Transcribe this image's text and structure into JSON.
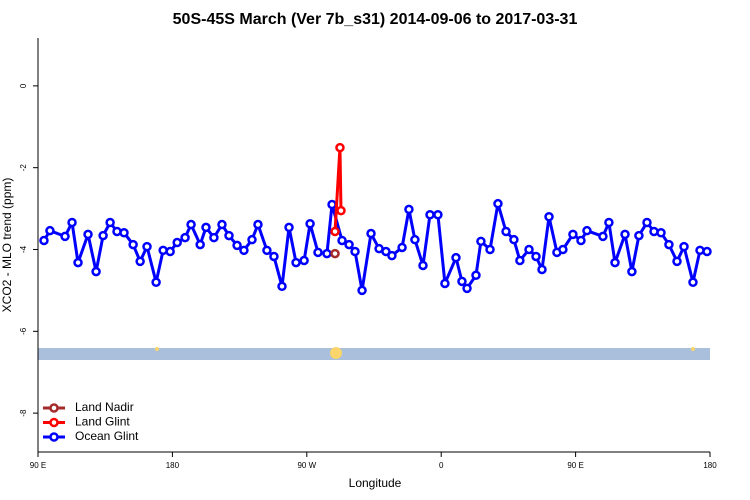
{
  "chart_data": {
    "type": "line",
    "title": "50S-45S March (Ver 7b_s31)   2014-09-06 to 2017-03-31",
    "x_label": "Longitude",
    "y_label": "XCO2 - MLO trend (ppm)",
    "xlim": [
      90,
      540
    ],
    "ylim": [
      -8.95,
      1.17
    ],
    "xticks": [
      {
        "value": 90,
        "label": "90 E"
      },
      180,
      {
        "value": 270,
        "label": "90 W"
      },
      {
        "value": 360,
        "label": "0"
      },
      {
        "value": 450,
        "label": "90 E"
      },
      {
        "value": 540,
        "label": "180"
      }
    ],
    "yticks": [
      0,
      -2,
      -4,
      -6,
      -8
    ],
    "legend": "bottom-left",
    "series": [
      {
        "name": "Land Nadir",
        "color": "#a52a2a",
        "x": [
          288.9
        ],
        "values": [
          -4.1
        ]
      },
      {
        "name": "Land Glint",
        "color": "#ff0000",
        "x": [
          288.9,
          292.2,
          292.9
        ],
        "values": [
          -3.56,
          -1.51,
          -3.05
        ]
      },
      {
        "name": "Ocean Glint",
        "color": "#0000ff",
        "x": [
          94.0,
          98.0,
          108.1,
          112.8,
          116.8,
          123.5,
          128.9,
          133.6,
          138.3,
          142.9,
          147.6,
          153.7,
          158.4,
          163.0,
          169.1,
          173.8,
          178.5,
          183.2,
          188.5,
          192.5,
          198.6,
          202.5,
          207.8,
          213.2,
          217.9,
          223.3,
          227.9,
          233.3,
          237.3,
          243.3,
          248.0,
          253.4,
          258.1,
          262.8,
          268.2,
          272.2,
          277.5,
          283.5,
          286.9,
          293.6,
          298.3,
          302.3,
          307.0,
          313.0,
          318.4,
          323.0,
          327.0,
          333.8,
          338.4,
          342.4,
          347.8,
          352.5,
          357.8,
          362.5,
          369.9,
          373.9,
          377.3,
          383.3,
          386.6,
          392.7,
          398.0,
          403.4,
          408.7,
          412.7,
          418.8,
          423.5,
          427.5,
          432.2,
          437.5,
          441.5,
          448.2,
          453.6,
          457.6,
          468.3,
          472.3,
          476.4,
          483.1,
          487.7,
          492.4,
          497.8,
          502.5,
          507.2,
          512.5,
          517.9,
          522.6,
          528.6,
          533.3,
          538.0
        ],
        "values": [
          -3.78,
          -3.54,
          -3.68,
          -3.34,
          -4.32,
          -3.63,
          -4.54,
          -3.66,
          -3.34,
          -3.56,
          -3.59,
          -3.88,
          -4.29,
          -3.93,
          -4.8,
          -4.02,
          -4.05,
          -3.83,
          -3.71,
          -3.39,
          -3.88,
          -3.46,
          -3.71,
          -3.39,
          -3.66,
          -3.9,
          -4.02,
          -3.76,
          -3.39,
          -4.02,
          -4.17,
          -4.9,
          -3.46,
          -4.32,
          -4.27,
          -3.37,
          -4.07,
          -4.1,
          -2.9,
          -3.78,
          -3.88,
          -4.05,
          -5.0,
          -3.61,
          -3.98,
          -4.05,
          -4.15,
          -3.95,
          -3.02,
          -3.76,
          -4.39,
          -3.15,
          -3.15,
          -4.83,
          -4.2,
          -4.78,
          -4.95,
          -4.63,
          -3.8,
          -4.0,
          -2.88,
          -3.56,
          -3.76,
          -4.27,
          -4.0,
          -4.17,
          -4.49,
          -3.2,
          -4.07,
          -4.0,
          -3.63,
          -3.78,
          -3.54,
          -3.68,
          -3.34,
          -4.32,
          -3.63,
          -4.54,
          -3.66,
          -3.34,
          -3.56,
          -3.59,
          -3.88,
          -4.29,
          -3.93,
          -4.8,
          -4.02,
          -4.05
        ]
      }
    ]
  }
}
